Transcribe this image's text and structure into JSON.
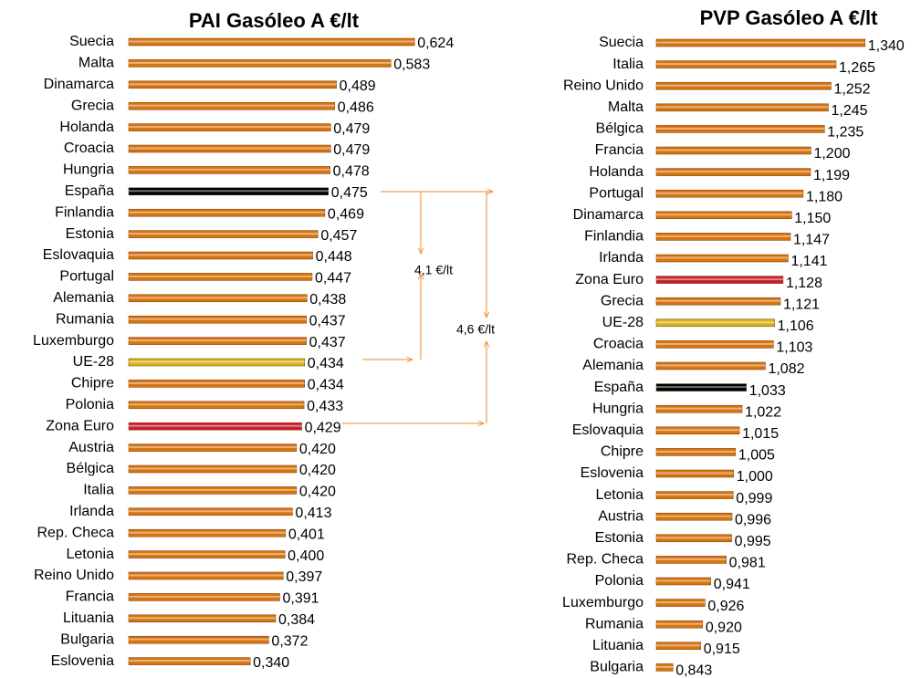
{
  "chart_data": [
    {
      "type": "bar",
      "orientation": "horizontal",
      "title": "PAI Gasóleo A €/lt",
      "categories": [
        "Suecia",
        "Malta",
        "Dinamarca",
        "Grecia",
        "Holanda",
        "Croacia",
        "Hungria",
        "España",
        "Finlandia",
        "Estonia",
        "Eslovaquia",
        "Portugal",
        "Alemania",
        "Rumania",
        "Luxemburgo",
        "UE-28",
        "Chipre",
        "Polonia",
        "Zona Euro",
        "Austria",
        "Bélgica",
        "Italia",
        "Irlanda",
        "Rep. Checa",
        "Letonia",
        "Reino Unido",
        "Francia",
        "Lituania",
        "Bulgaria",
        "Eslovenia"
      ],
      "values": [
        0.624,
        0.583,
        0.489,
        0.486,
        0.479,
        0.479,
        0.478,
        0.475,
        0.469,
        0.457,
        0.448,
        0.447,
        0.438,
        0.437,
        0.437,
        0.434,
        0.434,
        0.433,
        0.429,
        0.42,
        0.42,
        0.42,
        0.413,
        0.401,
        0.4,
        0.397,
        0.391,
        0.384,
        0.372,
        0.34
      ],
      "value_labels": [
        "0,624",
        "0,583",
        "0,489",
        "0,486",
        "0,479",
        "0,479",
        "0,478",
        "0,475",
        "0,469",
        "0,457",
        "0,448",
        "0,447",
        "0,438",
        "0,437",
        "0,437",
        "0,434",
        "0,434",
        "0,433",
        "0,429",
        "0,420",
        "0,420",
        "0,420",
        "0,413",
        "0,401",
        "0,400",
        "0,397",
        "0,391",
        "0,384",
        "0,372",
        "0,340"
      ],
      "colors": [
        "#d8730f",
        "#d8730f",
        "#d8730f",
        "#d8730f",
        "#d8730f",
        "#d8730f",
        "#d8730f",
        "#000000",
        "#d8730f",
        "#d8730f",
        "#d8730f",
        "#d8730f",
        "#d8730f",
        "#d8730f",
        "#d8730f",
        "#d9b31a",
        "#d8730f",
        "#d8730f",
        "#c81e28",
        "#d8730f",
        "#d8730f",
        "#d8730f",
        "#d8730f",
        "#d8730f",
        "#d8730f",
        "#d8730f",
        "#d8730f",
        "#d8730f",
        "#d8730f",
        "#d8730f"
      ],
      "xlim": [
        0.13,
        0.63
      ],
      "annotations": [
        "4,1 €/lt",
        "4,6 €/lt"
      ]
    },
    {
      "type": "bar",
      "orientation": "horizontal",
      "title": "PVP Gasóleo A €/lt",
      "categories": [
        "Suecia",
        "Italia",
        "Reino Unido",
        "Malta",
        "Bélgica",
        "Francia",
        "Holanda",
        "Portugal",
        "Dinamarca",
        "Finlandia",
        "Irlanda",
        "Zona Euro",
        "Grecia",
        "UE-28",
        "Croacia",
        "Alemania",
        "España",
        "Hungria",
        "Eslovaquia",
        "Chipre",
        "Eslovenia",
        "Letonia",
        "Austria",
        "Estonia",
        "Rep. Checa",
        "Polonia",
        "Luxemburgo",
        "Rumania",
        "Lituania",
        "Bulgaria"
      ],
      "values": [
        1.34,
        1.265,
        1.252,
        1.245,
        1.235,
        1.2,
        1.199,
        1.18,
        1.15,
        1.147,
        1.141,
        1.128,
        1.121,
        1.106,
        1.103,
        1.082,
        1.033,
        1.022,
        1.015,
        1.005,
        1.0,
        0.999,
        0.996,
        0.995,
        0.981,
        0.941,
        0.926,
        0.92,
        0.915,
        0.843
      ],
      "value_labels": [
        "1,340",
        "1,265",
        "1,252",
        "1,245",
        "1,235",
        "1,200",
        "1,199",
        "1,180",
        "1,150",
        "1,147",
        "1,141",
        "1,128",
        "1,121",
        "1,106",
        "1,103",
        "1,082",
        "1,033",
        "1,022",
        "1,015",
        "1,005",
        "1,000",
        "0,999",
        "0,996",
        "0,995",
        "0,981",
        "0,941",
        "0,926",
        "0,920",
        "0,915",
        "0,843"
      ],
      "colors": [
        "#d8730f",
        "#d8730f",
        "#d8730f",
        "#d8730f",
        "#d8730f",
        "#d8730f",
        "#d8730f",
        "#d8730f",
        "#d8730f",
        "#d8730f",
        "#d8730f",
        "#c81e28",
        "#d8730f",
        "#d9b31a",
        "#d8730f",
        "#d8730f",
        "#000000",
        "#d8730f",
        "#d8730f",
        "#d8730f",
        "#d8730f",
        "#d8730f",
        "#d8730f",
        "#d8730f",
        "#d8730f",
        "#d8730f",
        "#d8730f",
        "#d8730f",
        "#d8730f",
        "#d8730f"
      ],
      "xlim": [
        0.8,
        1.35
      ]
    }
  ]
}
